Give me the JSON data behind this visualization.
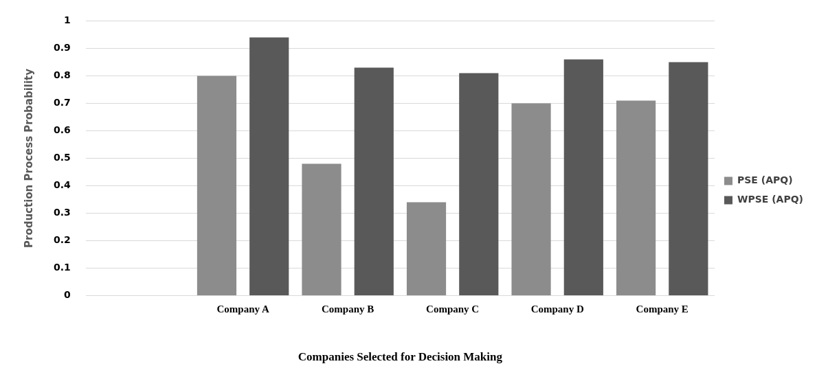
{
  "chart_data": {
    "type": "bar",
    "xlabel": "Companies Selected for Decision Making",
    "ylabel": "Production Process Probability",
    "categories": [
      null,
      "Company A",
      "Company B",
      "Company C",
      "Company D",
      "Company E"
    ],
    "series": [
      {
        "name": "PSE (APQ)",
        "color": "#8c8c8c",
        "values": [
          null,
          0.8,
          0.48,
          0.34,
          0.7,
          0.71
        ]
      },
      {
        "name": "WPSE (APQ)",
        "color": "#595959",
        "values": [
          null,
          0.94,
          0.83,
          0.81,
          0.86,
          0.85
        ]
      }
    ],
    "ylim": [
      0,
      1
    ],
    "yticks": [
      0,
      0.1,
      0.2,
      0.3,
      0.4,
      0.5,
      0.6,
      0.7,
      0.8,
      0.9,
      1
    ],
    "grid": "y",
    "legend": "right"
  }
}
